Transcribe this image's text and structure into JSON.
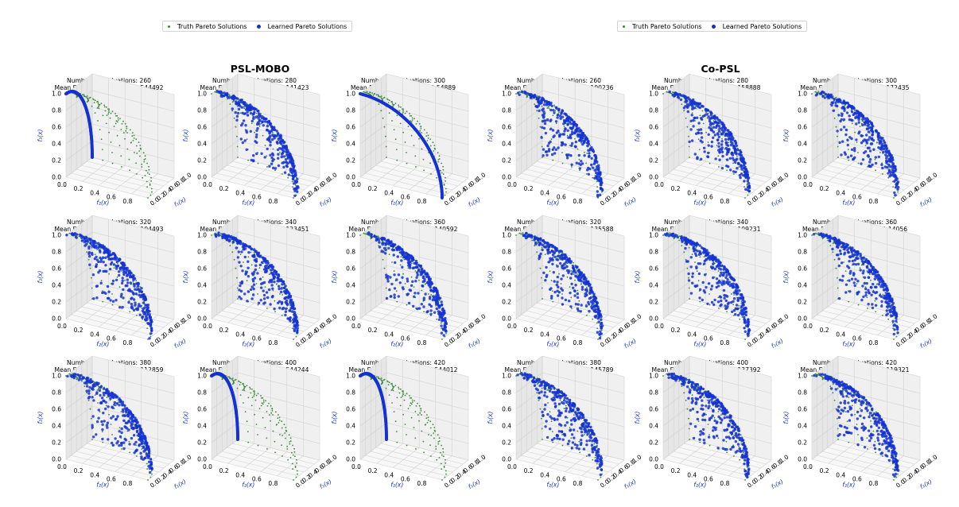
{
  "legend": {
    "truth_label": "Truth Pareto Solutions",
    "learned_label": "Learned Pareto Solutions",
    "truth_color": "#3a8a3a",
    "learned_color": "#1432d2"
  },
  "axes": {
    "xlabel": "f₂(x)",
    "ylabel": "f₁(x)",
    "zlabel": "f₃(x)",
    "x_ticks": [
      "0.0",
      "0.2",
      "0.4",
      "0.6",
      "0.8",
      "1.0"
    ],
    "y_ticks": [
      "0.0",
      "0.2",
      "0.4",
      "0.6",
      "0.8",
      "1.0"
    ],
    "z_ticks": [
      "0.0",
      "0.2",
      "0.4",
      "0.6",
      "0.8",
      "1.0"
    ]
  },
  "groups": [
    {
      "title": "PSL-MOBO"
    },
    {
      "title": "Co-PSL"
    }
  ],
  "chart_data": [
    {
      "type": "scatter3d",
      "method": "PSL-MOBO",
      "evaluations_text": "Number of evaluations: 260",
      "distance_text": "Mean Euclidean Distance: 0.544492",
      "evaluations": 260,
      "mean_euclidean_distance": 0.544492,
      "learned_pattern": "arc-left",
      "xlim": [
        0,
        1
      ],
      "ylim": [
        0,
        1
      ],
      "zlim": [
        0,
        1
      ]
    },
    {
      "type": "scatter3d",
      "method": "PSL-MOBO",
      "evaluations_text": "Number of evaluations: 280",
      "distance_text": "Mean Euclidean Distance: 0.141423",
      "evaluations": 280,
      "mean_euclidean_distance": 0.141423,
      "learned_pattern": "surface",
      "xlim": [
        0,
        1
      ],
      "ylim": [
        0,
        1
      ],
      "zlim": [
        0,
        1
      ]
    },
    {
      "type": "scatter3d",
      "method": "PSL-MOBO",
      "evaluations_text": "Number of evaluations: 300",
      "distance_text": "Mean Euclidean Distance: 0.54889",
      "evaluations": 300,
      "mean_euclidean_distance": 0.54889,
      "learned_pattern": "arc-right",
      "xlim": [
        0,
        1
      ],
      "ylim": [
        0,
        1
      ],
      "zlim": [
        0,
        1
      ]
    },
    {
      "type": "scatter3d",
      "method": "PSL-MOBO",
      "evaluations_text": "Number of evaluations: 320",
      "distance_text": "Mean Euclidean Distance: 0.104493",
      "evaluations": 320,
      "mean_euclidean_distance": 0.104493,
      "learned_pattern": "surface",
      "xlim": [
        0,
        1
      ],
      "ylim": [
        0,
        1
      ],
      "zlim": [
        0,
        1
      ]
    },
    {
      "type": "scatter3d",
      "method": "PSL-MOBO",
      "evaluations_text": "Number of evaluations: 340",
      "distance_text": "Mean Euclidean Distance: 0.123451",
      "evaluations": 340,
      "mean_euclidean_distance": 0.123451,
      "learned_pattern": "surface",
      "xlim": [
        0,
        1
      ],
      "ylim": [
        0,
        1
      ],
      "zlim": [
        0,
        1
      ]
    },
    {
      "type": "scatter3d",
      "method": "PSL-MOBO",
      "evaluations_text": "Number of evaluations: 360",
      "distance_text": "Mean Euclidean Distance: 0.140592",
      "evaluations": 360,
      "mean_euclidean_distance": 0.140592,
      "learned_pattern": "surface",
      "xlim": [
        0,
        1
      ],
      "ylim": [
        0,
        1
      ],
      "zlim": [
        0,
        1
      ]
    },
    {
      "type": "scatter3d",
      "method": "PSL-MOBO",
      "evaluations_text": "Number of evaluations: 380",
      "distance_text": "Mean Euclidean Distance: 0.112859",
      "evaluations": 380,
      "mean_euclidean_distance": 0.112859,
      "learned_pattern": "surface",
      "xlim": [
        0,
        1
      ],
      "ylim": [
        0,
        1
      ],
      "zlim": [
        0,
        1
      ]
    },
    {
      "type": "scatter3d",
      "method": "PSL-MOBO",
      "evaluations_text": "Number of evaluations: 400",
      "distance_text": "Mean Euclidean Distance: 0.544244",
      "evaluations": 400,
      "mean_euclidean_distance": 0.544244,
      "learned_pattern": "arc-left",
      "xlim": [
        0,
        1
      ],
      "ylim": [
        0,
        1
      ],
      "zlim": [
        0,
        1
      ]
    },
    {
      "type": "scatter3d",
      "method": "PSL-MOBO",
      "evaluations_text": "Number of evaluations: 420",
      "distance_text": "Mean Euclidean Distance: 0.544012",
      "evaluations": 420,
      "mean_euclidean_distance": 0.544012,
      "learned_pattern": "arc-left",
      "xlim": [
        0,
        1
      ],
      "ylim": [
        0,
        1
      ],
      "zlim": [
        0,
        1
      ]
    },
    {
      "type": "scatter3d",
      "method": "Co-PSL",
      "evaluations_text": "Number of evaluations: 260",
      "distance_text": "Mean Euclidean Distance: 0.100236",
      "evaluations": 260,
      "mean_euclidean_distance": 0.100236,
      "learned_pattern": "surface",
      "xlim": [
        0,
        1
      ],
      "ylim": [
        0,
        1
      ],
      "zlim": [
        0,
        1
      ]
    },
    {
      "type": "scatter3d",
      "method": "Co-PSL",
      "evaluations_text": "Number of evaluations: 280",
      "distance_text": "Mean Euclidean Distance: 0.158888",
      "evaluations": 280,
      "mean_euclidean_distance": 0.158888,
      "learned_pattern": "surface",
      "xlim": [
        0,
        1
      ],
      "ylim": [
        0,
        1
      ],
      "zlim": [
        0,
        1
      ]
    },
    {
      "type": "scatter3d",
      "method": "Co-PSL",
      "evaluations_text": "Number of evaluations: 300",
      "distance_text": "Mean Euclidean Distance: 0.172435",
      "evaluations": 300,
      "mean_euclidean_distance": 0.172435,
      "learned_pattern": "surface",
      "xlim": [
        0,
        1
      ],
      "ylim": [
        0,
        1
      ],
      "zlim": [
        0,
        1
      ]
    },
    {
      "type": "scatter3d",
      "method": "Co-PSL",
      "evaluations_text": "Number of evaluations: 320",
      "distance_text": "Mean Euclidean Distance: 0.135588",
      "evaluations": 320,
      "mean_euclidean_distance": 0.135588,
      "learned_pattern": "surface",
      "xlim": [
        0,
        1
      ],
      "ylim": [
        0,
        1
      ],
      "zlim": [
        0,
        1
      ]
    },
    {
      "type": "scatter3d",
      "method": "Co-PSL",
      "evaluations_text": "Number of evaluations: 340",
      "distance_text": "Mean Euclidean Distance: 0.109231",
      "evaluations": 340,
      "mean_euclidean_distance": 0.109231,
      "learned_pattern": "surface",
      "xlim": [
        0,
        1
      ],
      "ylim": [
        0,
        1
      ],
      "zlim": [
        0,
        1
      ]
    },
    {
      "type": "scatter3d",
      "method": "Co-PSL",
      "evaluations_text": "Number of evaluations: 360",
      "distance_text": "Mean Euclidean Distance: 0.14056",
      "evaluations": 360,
      "mean_euclidean_distance": 0.14056,
      "learned_pattern": "surface",
      "xlim": [
        0,
        1
      ],
      "ylim": [
        0,
        1
      ],
      "zlim": [
        0,
        1
      ]
    },
    {
      "type": "scatter3d",
      "method": "Co-PSL",
      "evaluations_text": "Number of evaluations: 380",
      "distance_text": "Mean Euclidean Distance: 0.145789",
      "evaluations": 380,
      "mean_euclidean_distance": 0.145789,
      "learned_pattern": "surface",
      "xlim": [
        0,
        1
      ],
      "ylim": [
        0,
        1
      ],
      "zlim": [
        0,
        1
      ]
    },
    {
      "type": "scatter3d",
      "method": "Co-PSL",
      "evaluations_text": "Number of evaluations: 400",
      "distance_text": "Mean Euclidean Distance: 0.137392",
      "evaluations": 400,
      "mean_euclidean_distance": 0.137392,
      "learned_pattern": "surface",
      "xlim": [
        0,
        1
      ],
      "ylim": [
        0,
        1
      ],
      "zlim": [
        0,
        1
      ]
    },
    {
      "type": "scatter3d",
      "method": "Co-PSL",
      "evaluations_text": "Number of evaluations: 420",
      "distance_text": "Mean Euclidean Distance: 0.119321",
      "evaluations": 420,
      "mean_euclidean_distance": 0.119321,
      "learned_pattern": "surface",
      "xlim": [
        0,
        1
      ],
      "ylim": [
        0,
        1
      ],
      "zlim": [
        0,
        1
      ]
    }
  ]
}
